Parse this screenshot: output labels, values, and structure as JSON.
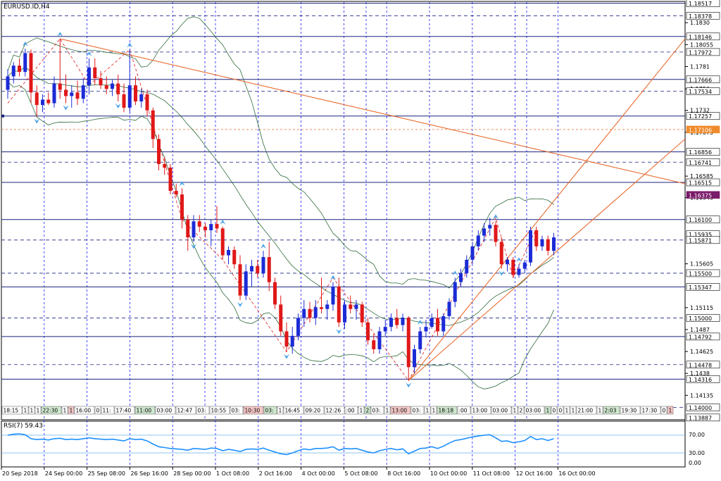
{
  "window": {
    "symbol": "EURUSD.ID,H4"
  },
  "rsi": {
    "label": "RSI(7) 59.43",
    "levels": [
      "70.00",
      "30.00",
      "0.00"
    ]
  },
  "colors": {
    "bull": "#1c2bd6",
    "bear": "#e01818",
    "grid": "#1a1aff",
    "bands": "#2e6b3a",
    "trend": "#e96a2e",
    "rsi_line": "#1e90ff",
    "price_tag_bg": "#7a1a6a",
    "orange_tag_bg": "#f08a2a"
  },
  "marker_strip": [
    "18:15",
    "1",
    "1",
    "1",
    "22:30",
    "1",
    "1",
    "16:00",
    "0",
    "11:",
    "17:40",
    "11:00",
    "03:00",
    "12:47",
    "03:",
    "10:55",
    "03:",
    "10:30",
    "03:",
    "1",
    "16:45",
    "09:20",
    "12:26",
    ":00",
    "1",
    "2",
    "03:",
    "1",
    "13:00",
    "03:",
    "1",
    "1",
    "18:18",
    ":00",
    "13:00",
    "03:00",
    "1",
    "2",
    "03:00",
    "1",
    "0",
    "0",
    "1",
    "1",
    "21:00",
    "1",
    "2:03",
    "19:30",
    "17:30",
    "0",
    "1"
  ],
  "chart_data": {
    "type": "candlestick",
    "title": "EURUSD.ID,H4",
    "ylim": [
      1.1387,
      1.1853
    ],
    "y_ticks": [
      1.183,
      1.18055,
      1.1781,
      1.1756,
      1.1732,
      1.17075,
      1.16585,
      1.16345,
      1.15605,
      1.15115,
      1.1487,
      1.14625,
      1.1438,
      1.14135
    ],
    "price_tags": [
      {
        "label": "1.18517",
        "price": 1.18517,
        "style": "solid"
      },
      {
        "label": "1.18378",
        "price": 1.18378,
        "style": "dash"
      },
      {
        "label": "1.18146",
        "price": 1.18146,
        "style": "solid"
      },
      {
        "label": "1.17972",
        "price": 1.17972,
        "style": "dash"
      },
      {
        "label": "1.17666",
        "price": 1.17666,
        "style": "solid"
      },
      {
        "label": "1.17534",
        "price": 1.17534,
        "style": "dash"
      },
      {
        "label": "1.17257",
        "price": 1.17257,
        "style": "solid"
      },
      {
        "label": "1.17106",
        "price": 1.17106,
        "style": "orange"
      },
      {
        "label": "1.16856",
        "price": 1.16856,
        "style": "solid"
      },
      {
        "label": "1.16741",
        "price": 1.16741,
        "style": "dash"
      },
      {
        "label": "1.16515",
        "price": 1.16515,
        "style": "solid"
      },
      {
        "label": "1.16375",
        "price": 1.16375,
        "style": "current"
      },
      {
        "label": "1.16100",
        "price": 1.161,
        "style": "solid"
      },
      {
        "label": "1.15935",
        "price": 1.15935,
        "style": "none"
      },
      {
        "label": "1.15871",
        "price": 1.15871,
        "style": "dash"
      },
      {
        "label": "1.15500",
        "price": 1.155,
        "style": "dash"
      },
      {
        "label": "1.15347",
        "price": 1.15347,
        "style": "solid"
      },
      {
        "label": "1.15000",
        "price": 1.15,
        "style": "dash"
      },
      {
        "label": "1.14792",
        "price": 1.14792,
        "style": "solid"
      },
      {
        "label": "1.14478",
        "price": 1.14478,
        "style": "dash"
      },
      {
        "label": "1.14316",
        "price": 1.14316,
        "style": "solid"
      },
      {
        "label": "1.14000",
        "price": 1.14,
        "style": "dash"
      },
      {
        "label": "1.13887",
        "price": 1.13887,
        "style": "none"
      }
    ],
    "x_labels": [
      "20 Sep 2018",
      "24 Sep 00:00",
      "25 Sep 08:00",
      "26 Sep 16:00",
      "28 Sep 00:00",
      "1 Oct 08:00",
      "2 Oct 16:00",
      "4 Oct 00:00",
      "5 Oct 08:00",
      "8 Oct 16:00",
      "10 Oct 00:00",
      "11 Oct 08:00",
      "12 Oct 16:00",
      "16 Oct 00:00"
    ],
    "candles": [
      [
        1.1755,
        1.1778,
        1.1745,
        1.177
      ],
      [
        1.177,
        1.1786,
        1.1762,
        1.1782
      ],
      [
        1.1782,
        1.179,
        1.177,
        1.1775
      ],
      [
        1.1775,
        1.1801,
        1.177,
        1.1796
      ],
      [
        1.1796,
        1.18,
        1.174,
        1.1752
      ],
      [
        1.1752,
        1.176,
        1.1725,
        1.1738
      ],
      [
        1.1738,
        1.175,
        1.173,
        1.1744
      ],
      [
        1.1744,
        1.1752,
        1.1738,
        1.174
      ],
      [
        1.174,
        1.177,
        1.1735,
        1.1762
      ],
      [
        1.1762,
        1.1812,
        1.1745,
        1.1755
      ],
      [
        1.1755,
        1.1772,
        1.174,
        1.1748
      ],
      [
        1.1748,
        1.176,
        1.1735,
        1.1752
      ],
      [
        1.1752,
        1.1765,
        1.1738,
        1.1745
      ],
      [
        1.1745,
        1.1768,
        1.174,
        1.176
      ],
      [
        1.176,
        1.179,
        1.175,
        1.178
      ],
      [
        1.178,
        1.179,
        1.176,
        1.1768
      ],
      [
        1.1768,
        1.1776,
        1.1756,
        1.176
      ],
      [
        1.176,
        1.177,
        1.175,
        1.1756
      ],
      [
        1.1756,
        1.1766,
        1.1748,
        1.1762
      ],
      [
        1.1762,
        1.1772,
        1.1742,
        1.175
      ],
      [
        1.175,
        1.1762,
        1.173,
        1.1735
      ],
      [
        1.1735,
        1.18,
        1.173,
        1.176
      ],
      [
        1.176,
        1.177,
        1.1738,
        1.1742
      ],
      [
        1.1742,
        1.1756,
        1.1735,
        1.175
      ],
      [
        1.175,
        1.1755,
        1.1725,
        1.1732
      ],
      [
        1.1732,
        1.1735,
        1.169,
        1.17
      ],
      [
        1.17,
        1.1705,
        1.1665,
        1.1672
      ],
      [
        1.1672,
        1.168,
        1.166,
        1.1668
      ],
      [
        1.1668,
        1.1672,
        1.1638,
        1.1642
      ],
      [
        1.1642,
        1.165,
        1.1635,
        1.1638
      ],
      [
        1.1638,
        1.1645,
        1.16,
        1.161
      ],
      [
        1.161,
        1.1615,
        1.1575,
        1.159
      ],
      [
        1.159,
        1.1615,
        1.1585,
        1.1608
      ],
      [
        1.1608,
        1.1615,
        1.1596,
        1.1602
      ],
      [
        1.1602,
        1.1606,
        1.159,
        1.1598
      ],
      [
        1.1598,
        1.161,
        1.158,
        1.1605
      ],
      [
        1.1605,
        1.1625,
        1.1595,
        1.16
      ],
      [
        1.16,
        1.1602,
        1.1565,
        1.157
      ],
      [
        1.157,
        1.158,
        1.156,
        1.1576
      ],
      [
        1.1576,
        1.158,
        1.1555,
        1.156
      ],
      [
        1.156,
        1.157,
        1.152,
        1.1525
      ],
      [
        1.1525,
        1.156,
        1.152,
        1.1552
      ],
      [
        1.1552,
        1.1565,
        1.1535,
        1.1558
      ],
      [
        1.1558,
        1.1565,
        1.1545,
        1.155
      ],
      [
        1.155,
        1.1575,
        1.1545,
        1.1568
      ],
      [
        1.1568,
        1.1585,
        1.153,
        1.154
      ],
      [
        1.154,
        1.1545,
        1.151,
        1.1515
      ],
      [
        1.1515,
        1.1525,
        1.148,
        1.1485
      ],
      [
        1.1485,
        1.1495,
        1.1462,
        1.1468
      ],
      [
        1.1468,
        1.149,
        1.146,
        1.148
      ],
      [
        1.148,
        1.1505,
        1.1475,
        1.15
      ],
      [
        1.15,
        1.152,
        1.149,
        1.151
      ],
      [
        1.151,
        1.1518,
        1.1495,
        1.15
      ],
      [
        1.15,
        1.152,
        1.1492,
        1.1512
      ],
      [
        1.1512,
        1.1545,
        1.1505,
        1.151
      ],
      [
        1.151,
        1.152,
        1.1498,
        1.1515
      ],
      [
        1.1515,
        1.154,
        1.1508,
        1.1535
      ],
      [
        1.1535,
        1.1545,
        1.149,
        1.1495
      ],
      [
        1.1495,
        1.152,
        1.1488,
        1.1515
      ],
      [
        1.1515,
        1.1525,
        1.1505,
        1.151
      ],
      [
        1.151,
        1.152,
        1.1498,
        1.1515
      ],
      [
        1.1515,
        1.1518,
        1.149,
        1.1495
      ],
      [
        1.1495,
        1.15,
        1.147,
        1.1475
      ],
      [
        1.1475,
        1.1482,
        1.146,
        1.1465
      ],
      [
        1.1465,
        1.149,
        1.146,
        1.1485
      ],
      [
        1.1485,
        1.1498,
        1.148,
        1.149
      ],
      [
        1.149,
        1.1505,
        1.1485,
        1.15
      ],
      [
        1.15,
        1.151,
        1.1488,
        1.1492
      ],
      [
        1.1492,
        1.1505,
        1.1485,
        1.15
      ],
      [
        1.15,
        1.1502,
        1.143,
        1.1445
      ],
      [
        1.1445,
        1.147,
        1.1438,
        1.1465
      ],
      [
        1.1465,
        1.149,
        1.146,
        1.1485
      ],
      [
        1.1485,
        1.1498,
        1.1478,
        1.149
      ],
      [
        1.149,
        1.1505,
        1.1488,
        1.15
      ],
      [
        1.15,
        1.151,
        1.148,
        1.1485
      ],
      [
        1.1485,
        1.1505,
        1.148,
        1.1502
      ],
      [
        1.1502,
        1.1522,
        1.1498,
        1.1518
      ],
      [
        1.1518,
        1.1545,
        1.1512,
        1.154
      ],
      [
        1.154,
        1.1555,
        1.1535,
        1.155
      ],
      [
        1.155,
        1.157,
        1.1545,
        1.1565
      ],
      [
        1.1565,
        1.1585,
        1.156,
        1.158
      ],
      [
        1.158,
        1.1598,
        1.1575,
        1.1592
      ],
      [
        1.1592,
        1.1606,
        1.1585,
        1.16
      ],
      [
        1.16,
        1.1612,
        1.1592,
        1.1604
      ],
      [
        1.1604,
        1.1608,
        1.158,
        1.1585
      ],
      [
        1.1585,
        1.159,
        1.1555,
        1.156
      ],
      [
        1.156,
        1.1568,
        1.1552,
        1.1565
      ],
      [
        1.1565,
        1.1568,
        1.1545,
        1.1548
      ],
      [
        1.1548,
        1.156,
        1.1545,
        1.1555
      ],
      [
        1.1555,
        1.1565,
        1.155,
        1.1562
      ],
      [
        1.1562,
        1.1602,
        1.1558,
        1.1598
      ],
      [
        1.1598,
        1.1602,
        1.1575,
        1.158
      ],
      [
        1.158,
        1.1592,
        1.1575,
        1.1588
      ],
      [
        1.1588,
        1.1592,
        1.157,
        1.1575
      ],
      [
        1.1575,
        1.1595,
        1.157,
        1.159
      ]
    ],
    "rsi_values": [
      70,
      72,
      73,
      71,
      62,
      60,
      61,
      59,
      62,
      63,
      60,
      61,
      60,
      62,
      64,
      62,
      61,
      60,
      61,
      59,
      57,
      62,
      60,
      61,
      57,
      50,
      44,
      42,
      40,
      39,
      38,
      36,
      40,
      39,
      38,
      41,
      40,
      35,
      38,
      36,
      33,
      38,
      39,
      38,
      41,
      36,
      32,
      28,
      26,
      30,
      35,
      39,
      37,
      40,
      40,
      41,
      44,
      36,
      40,
      39,
      40,
      36,
      32,
      30,
      35,
      38,
      40,
      37,
      39,
      28,
      34,
      40,
      41,
      44,
      40,
      45,
      52,
      58,
      60,
      63,
      66,
      68,
      70,
      71,
      64,
      56,
      57,
      53,
      55,
      58,
      67,
      60,
      62,
      58,
      62
    ],
    "rsi_range": [
      0,
      100
    ]
  }
}
